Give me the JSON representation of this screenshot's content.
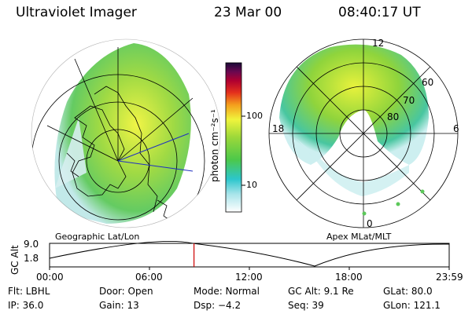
{
  "header": {
    "title": "Ultraviolet Imager",
    "date": "23 Mar 00",
    "time": "08:40:17 UT"
  },
  "colorbar": {
    "unit_label": "photon cm⁻²s⁻¹",
    "ticks": [
      "100",
      "10"
    ]
  },
  "panels": {
    "left_label": "Geographic Lat/Lon",
    "right_label": "Apex MLat/MLT",
    "polar_labels": {
      "top": "12",
      "left": "18",
      "right": "6",
      "bottom": "0"
    },
    "ring_labels": [
      "60",
      "70",
      "80"
    ]
  },
  "altitude_plot": {
    "axis_title": "GC Alt",
    "y_ticks": [
      "9.0",
      "1.8"
    ],
    "x_ticks": [
      "00:00",
      "06:00",
      "12:00",
      "18:00",
      "23:59"
    ],
    "marker_fraction": 0.3614
  },
  "info": {
    "row1": [
      "Flt: LBHL",
      "Door: Open",
      "Mode: Normal",
      "GC Alt: 9.1 Re",
      "GLat: 80.0"
    ],
    "row2": [
      "IP: 36.0",
      "Gain: 13",
      "Dsp:  −4.2",
      "Seq: 39",
      "GLon: 121.1"
    ]
  },
  "colors": {
    "marker": "#cc0000",
    "aurora_green": "#7ccf3a",
    "aurora_yellow": "#e8f23c",
    "aurora_cyan": "#3cc8d0"
  }
}
